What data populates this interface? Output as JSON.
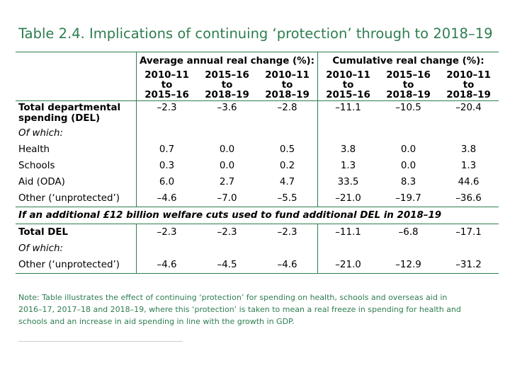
{
  "title": "Table 2.4. Implications of continuing ‘protection’ through to 2018–19",
  "groups": {
    "annual": "Average annual real change (%):",
    "cumulative": "Cumulative real change (%):"
  },
  "columns": [
    {
      "line1": "2010–11",
      "line2": "to",
      "line3": "2015–16"
    },
    {
      "line1": "2015–16",
      "line2": "to",
      "line3": "2018–19"
    },
    {
      "line1": "2010–11",
      "line2": "to",
      "line3": "2018–19"
    },
    {
      "line1": "2010–11",
      "line2": "to",
      "line3": "2015–16"
    },
    {
      "line1": "2015–16",
      "line2": "to",
      "line3": "2018–19"
    },
    {
      "line1": "2010–11",
      "line2": "to",
      "line3": "2018–19"
    }
  ],
  "rows": {
    "total_del": {
      "label_line1": "Total departmental",
      "label_line2": "spending (DEL)",
      "values": [
        "–2.3",
        "–3.6",
        "–2.8",
        "–11.1",
        "–10.5",
        "–20.4"
      ]
    },
    "of_which_1": "Of which:",
    "health": {
      "label": "Health",
      "values": [
        "0.7",
        "0.0",
        "0.5",
        "3.8",
        "0.0",
        "3.8"
      ]
    },
    "schools": {
      "label": "Schools",
      "values": [
        "0.3",
        "0.0",
        "0.2",
        "1.3",
        "0.0",
        "1.3"
      ]
    },
    "aid": {
      "label": "Aid (ODA)",
      "values": [
        "6.0",
        "2.7",
        "4.7",
        "33.5",
        "8.3",
        "44.6"
      ]
    },
    "other_1": {
      "label": "Other (‘unprotected’)",
      "values": [
        "–4.6",
        "–7.0",
        "–5.5",
        "–21.0",
        "–19.7",
        "–36.6"
      ]
    },
    "banner": "If an additional £12 billion welfare cuts used to fund additional DEL in 2018–19",
    "total_del_2": {
      "label": "Total DEL",
      "values": [
        "–2.3",
        "–2.3",
        "–2.3",
        "–11.1",
        "–6.8",
        "–17.1"
      ]
    },
    "of_which_2": "Of which:",
    "other_2": {
      "label": "Other (‘unprotected’)",
      "values": [
        "–4.6",
        "–4.5",
        "–4.6",
        "–21.0",
        "–12.9",
        "–31.2"
      ]
    }
  },
  "note": "Note: Table illustrates the effect of continuing ‘protection’ for spending on health, schools and overseas aid in 2016–17, 2017–18 and 2018–19, where this ‘protection’ is taken to mean a real freeze in spending for health and schools and an increase in aid spending in line with the growth in GDP."
}
